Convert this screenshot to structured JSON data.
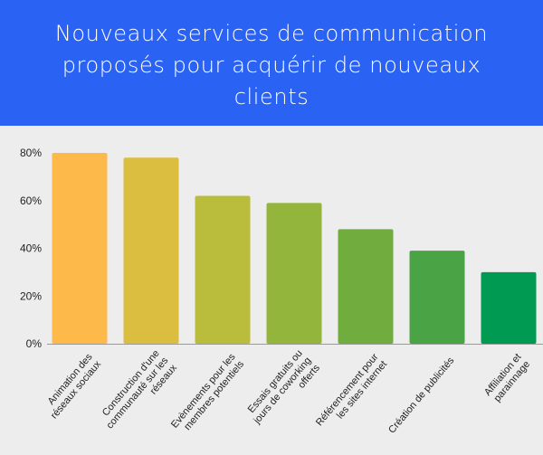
{
  "header": {
    "title": "Nouveaux services de communication proposés pour acquérir de nouveaux clients",
    "background_color": "#2a62f4"
  },
  "chart_data": {
    "type": "bar",
    "title": "Nouveaux services de communication proposés pour acquérir de nouveaux clients",
    "xlabel": "",
    "ylabel": "",
    "ylim": [
      0,
      80
    ],
    "yticks": [
      0,
      20,
      40,
      60,
      80
    ],
    "ytick_labels": [
      "0%",
      "20%",
      "40%",
      "60%",
      "80%"
    ],
    "grid": false,
    "categories": [
      [
        "Animation des",
        "réseaux sociaux"
      ],
      [
        "Construction d'une",
        "communauté sur les",
        "réseaux"
      ],
      [
        "Evènements pour les",
        "membres potentiels"
      ],
      [
        "Essais gratuits ou",
        "jours de coworking",
        "offerts"
      ],
      [
        "Référencement pour",
        "les sites internet"
      ],
      [
        "Création de publicités"
      ],
      [
        "Affiliation et",
        "parainnage"
      ]
    ],
    "values": [
      80,
      78,
      62,
      59,
      48,
      39,
      30
    ],
    "colors": [
      "#fdb94a",
      "#dbbd3f",
      "#b9bd3b",
      "#94b53b",
      "#71ac3f",
      "#4aa446",
      "#009a52"
    ]
  }
}
